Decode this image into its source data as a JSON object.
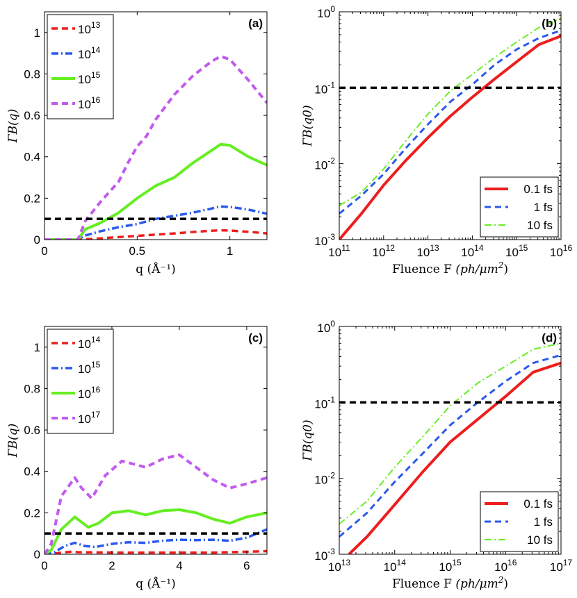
{
  "colors": {
    "red": "#ee1d1d",
    "blue": "#2a59ee",
    "green": "#66ee22",
    "purple": "#c15bee",
    "threshold": "#000000"
  },
  "chart_data": [
    {
      "id": "a",
      "panel_label": "(a)",
      "type": "line",
      "scale": "linear",
      "title": "",
      "xlabel": "q (Å⁻¹)",
      "ylabel": "ΓB(q)",
      "xlim": [
        0,
        1.2
      ],
      "ylim": [
        0,
        1.1
      ],
      "xticks": [
        0,
        0.5,
        1
      ],
      "xtick_labels": [
        "0",
        "0.5",
        "1"
      ],
      "yticks": [
        0,
        0.2,
        0.4,
        0.6,
        0.8,
        1
      ],
      "ytick_labels": [
        "0",
        "0.2",
        "0.4",
        "0.6",
        "0.8",
        "1"
      ],
      "legend_position": "top-left",
      "threshold": 0.1,
      "series": [
        {
          "name": "10^13",
          "base": "10",
          "exp": "13",
          "color": "red",
          "style": "dash",
          "width": 3.5,
          "x": [
            0,
            0.18,
            0.25,
            0.3,
            0.4,
            0.5,
            0.6,
            0.7,
            0.8,
            0.9,
            0.95,
            1.0,
            1.1,
            1.2
          ],
          "y": [
            0,
            0,
            0.003,
            0.006,
            0.012,
            0.018,
            0.024,
            0.03,
            0.037,
            0.043,
            0.045,
            0.044,
            0.038,
            0.03
          ]
        },
        {
          "name": "10^14",
          "base": "10",
          "exp": "14",
          "color": "blue",
          "style": "dashdot",
          "width": 3.5,
          "x": [
            0,
            0.18,
            0.22,
            0.3,
            0.4,
            0.5,
            0.6,
            0.7,
            0.8,
            0.9,
            0.95,
            1.0,
            1.1,
            1.2
          ],
          "y": [
            0,
            0,
            0.02,
            0.04,
            0.06,
            0.075,
            0.1,
            0.115,
            0.13,
            0.15,
            0.16,
            0.158,
            0.145,
            0.125
          ]
        },
        {
          "name": "10^15",
          "base": "10",
          "exp": "15",
          "color": "green",
          "style": "solid",
          "width": 4,
          "x": [
            0,
            0.18,
            0.22,
            0.3,
            0.4,
            0.5,
            0.55,
            0.6,
            0.7,
            0.8,
            0.9,
            0.95,
            1.0,
            1.1,
            1.2
          ],
          "y": [
            0,
            0,
            0.05,
            0.08,
            0.13,
            0.2,
            0.23,
            0.26,
            0.3,
            0.37,
            0.43,
            0.46,
            0.455,
            0.4,
            0.36
          ]
        },
        {
          "name": "10^16",
          "base": "10",
          "exp": "16",
          "color": "purple",
          "style": "dash",
          "width": 4,
          "x": [
            0,
            0.18,
            0.22,
            0.3,
            0.4,
            0.45,
            0.5,
            0.55,
            0.6,
            0.7,
            0.8,
            0.9,
            0.95,
            1.0,
            1.1,
            1.2
          ],
          "y": [
            0,
            0,
            0.09,
            0.18,
            0.28,
            0.37,
            0.45,
            0.5,
            0.58,
            0.7,
            0.79,
            0.86,
            0.885,
            0.87,
            0.77,
            0.66
          ]
        }
      ]
    },
    {
      "id": "b",
      "panel_label": "(b)",
      "type": "line",
      "scale": "loglog",
      "title": "",
      "xlabel": "Fluence F (ph/μm²)",
      "xlabel_parts": [
        "Fluence F ",
        "(ph/μm",
        "2",
        ")"
      ],
      "ylabel": "ΓB(q0)",
      "xlim_exp": [
        11,
        16
      ],
      "ylim_exp": [
        -3,
        0
      ],
      "xtick_exps": [
        "11",
        "12",
        "13",
        "14",
        "15",
        "16"
      ],
      "ytick_exps": [
        "-3",
        "-2",
        "-1",
        "0"
      ],
      "tick_base": "10",
      "legend_position": "bottom-right",
      "threshold": 0.1,
      "series": [
        {
          "name": "0.1 fs",
          "color": "red",
          "style": "solid",
          "width": 4,
          "x": [
            100000000000.0,
            316000000000.0,
            1000000000000.0,
            3160000000000.0,
            10000000000000.0,
            31600000000000.0,
            100000000000000.0,
            316000000000000.0,
            1000000000000000.0,
            3160000000000000.0,
            1e+16
          ],
          "y": [
            0.001,
            0.0022,
            0.0052,
            0.011,
            0.022,
            0.042,
            0.075,
            0.13,
            0.22,
            0.37,
            0.48
          ]
        },
        {
          "name": "1 fs",
          "color": "blue",
          "style": "dash",
          "width": 3,
          "x": [
            100000000000.0,
            316000000000.0,
            1000000000000.0,
            3160000000000.0,
            10000000000000.0,
            31600000000000.0,
            100000000000000.0,
            316000000000000.0,
            1000000000000000.0,
            3160000000000000.0,
            1e+16
          ],
          "y": [
            0.0022,
            0.0038,
            0.0073,
            0.016,
            0.033,
            0.065,
            0.11,
            0.2,
            0.32,
            0.45,
            0.57
          ]
        },
        {
          "name": "10 fs",
          "color": "green",
          "style": "dashdot",
          "width": 2,
          "x": [
            100000000000.0,
            316000000000.0,
            1000000000000.0,
            3160000000000.0,
            10000000000000.0,
            31600000000000.0,
            100000000000000.0,
            316000000000000.0,
            1000000000000000.0,
            3160000000000000.0,
            1e+16
          ],
          "y": [
            0.0028,
            0.0042,
            0.0085,
            0.02,
            0.045,
            0.09,
            0.15,
            0.25,
            0.4,
            0.62,
            0.82
          ]
        }
      ]
    },
    {
      "id": "c",
      "panel_label": "(c)",
      "type": "line",
      "scale": "linear",
      "title": "",
      "xlabel": "q (Å⁻¹)",
      "ylabel": "ΓB(q)",
      "xlim": [
        0,
        6.6
      ],
      "ylim": [
        0,
        1.1
      ],
      "xticks": [
        0,
        2,
        4,
        6
      ],
      "xtick_labels": [
        "0",
        "2",
        "4",
        "6"
      ],
      "yticks": [
        0,
        0.2,
        0.4,
        0.6,
        0.8,
        1
      ],
      "ytick_labels": [
        "0",
        "0.2",
        "0.4",
        "0.6",
        "0.8",
        "1"
      ],
      "legend_position": "top-left",
      "threshold": 0.1,
      "series": [
        {
          "name": "10^14",
          "base": "10",
          "exp": "14",
          "color": "red",
          "style": "dash",
          "width": 3.5,
          "x": [
            0,
            0.2,
            0.5,
            0.8,
            1,
            2,
            3,
            4,
            5,
            5.5,
            6,
            6.6
          ],
          "y": [
            0,
            0,
            0.008,
            0.012,
            0.01,
            0.008,
            0.008,
            0.008,
            0.008,
            0.01,
            0.012,
            0.015
          ]
        },
        {
          "name": "10^15",
          "base": "10",
          "exp": "15",
          "color": "blue",
          "style": "dashdot",
          "width": 3.5,
          "x": [
            0,
            0.3,
            0.6,
            0.9,
            1.2,
            1.5,
            2,
            2.5,
            3,
            3.5,
            4,
            4.5,
            5,
            5.5,
            6,
            6.6
          ],
          "y": [
            0,
            0.01,
            0.04,
            0.055,
            0.04,
            0.035,
            0.05,
            0.058,
            0.055,
            0.065,
            0.07,
            0.068,
            0.07,
            0.065,
            0.08,
            0.12
          ]
        },
        {
          "name": "10^16",
          "base": "10",
          "exp": "16",
          "color": "green",
          "style": "solid",
          "width": 4,
          "x": [
            0,
            0.2,
            0.5,
            0.9,
            1.3,
            1.6,
            2,
            2.5,
            3,
            3.5,
            4,
            4.5,
            5,
            5.5,
            6,
            6.6
          ],
          "y": [
            0,
            0.02,
            0.12,
            0.18,
            0.13,
            0.15,
            0.2,
            0.21,
            0.19,
            0.21,
            0.215,
            0.2,
            0.17,
            0.15,
            0.18,
            0.2
          ]
        },
        {
          "name": "10^17",
          "base": "10",
          "exp": "17",
          "color": "purple",
          "style": "dash",
          "width": 4,
          "x": [
            0,
            0.2,
            0.5,
            0.9,
            1.1,
            1.4,
            1.8,
            2.3,
            3,
            3.5,
            4,
            4.5,
            5,
            5.5,
            6,
            6.6
          ],
          "y": [
            0,
            0.05,
            0.28,
            0.37,
            0.32,
            0.27,
            0.38,
            0.45,
            0.42,
            0.46,
            0.48,
            0.42,
            0.36,
            0.32,
            0.34,
            0.37
          ]
        }
      ]
    },
    {
      "id": "d",
      "panel_label": "(d)",
      "type": "line",
      "scale": "loglog",
      "title": "",
      "xlabel": "Fluence F (ph/μm²)",
      "xlabel_parts": [
        "Fluence F ",
        "(ph/μm",
        "2",
        ")"
      ],
      "ylabel": "ΓB(q0)",
      "xlim_exp": [
        13,
        17
      ],
      "ylim_exp": [
        -3,
        0
      ],
      "xtick_exps": [
        "13",
        "14",
        "15",
        "16",
        "17"
      ],
      "ytick_exps": [
        "-3",
        "-2",
        "-1",
        "0"
      ],
      "tick_base": "10",
      "legend_position": "bottom-right",
      "threshold": 0.1,
      "series": [
        {
          "name": "0.1 fs",
          "color": "red",
          "style": "solid",
          "width": 4,
          "x": [
            15000000000000.0,
            31600000000000.0,
            100000000000000.0,
            316000000000000.0,
            1000000000000000.0,
            3160000000000000.0,
            1e+16,
            3.16e+16,
            1e+17
          ],
          "y": [
            0.001,
            0.0017,
            0.0045,
            0.012,
            0.03,
            0.06,
            0.12,
            0.25,
            0.33
          ]
        },
        {
          "name": "1 fs",
          "color": "blue",
          "style": "dash",
          "width": 3,
          "x": [
            10000000000000.0,
            31600000000000.0,
            100000000000000.0,
            316000000000000.0,
            1000000000000000.0,
            3160000000000000.0,
            1e+16,
            3.16e+16,
            1e+17
          ],
          "y": [
            0.0017,
            0.0035,
            0.009,
            0.021,
            0.05,
            0.1,
            0.19,
            0.33,
            0.42
          ]
        },
        {
          "name": "10 fs",
          "color": "green",
          "style": "dashdot",
          "width": 2,
          "x": [
            10000000000000.0,
            31600000000000.0,
            100000000000000.0,
            316000000000000.0,
            1000000000000000.0,
            3160000000000000.0,
            1e+16,
            3.16e+16,
            1e+17
          ],
          "y": [
            0.0025,
            0.005,
            0.014,
            0.035,
            0.09,
            0.18,
            0.3,
            0.5,
            0.6
          ]
        }
      ]
    }
  ]
}
